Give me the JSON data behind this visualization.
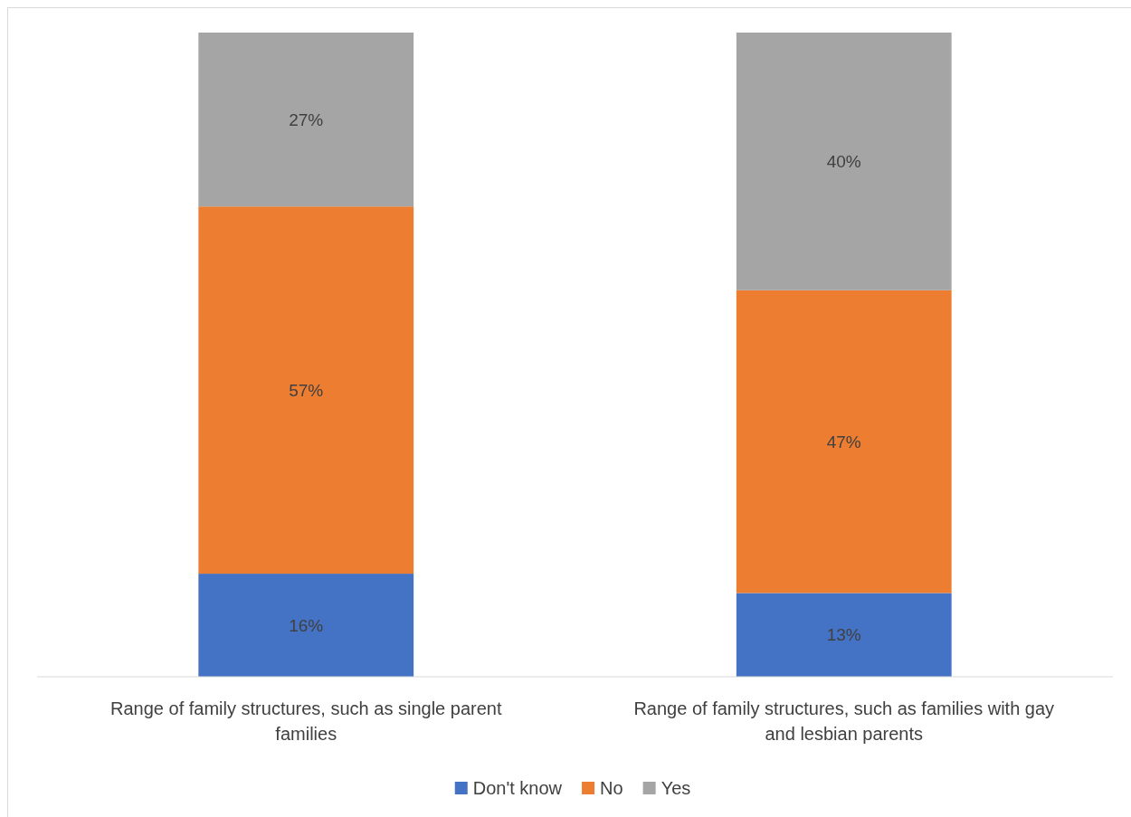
{
  "chart_data": {
    "type": "bar",
    "stacked": true,
    "legend": "bottom",
    "categories": [
      "Range of family structures, such as single parent families",
      "Range of family structures, such as families with gay and lesbian parents"
    ],
    "series": [
      {
        "name": "Don't know",
        "color": "#4472c4",
        "values": [
          16,
          13
        ],
        "value_labels": [
          "16%",
          "13%"
        ]
      },
      {
        "name": "No",
        "color": "#ed7d31",
        "values": [
          57,
          47
        ],
        "value_labels": [
          "57%",
          "47%"
        ]
      },
      {
        "name": "Yes",
        "color": "#a5a5a5",
        "values": [
          27,
          40
        ],
        "value_labels": [
          "27%",
          "40%"
        ]
      }
    ]
  }
}
